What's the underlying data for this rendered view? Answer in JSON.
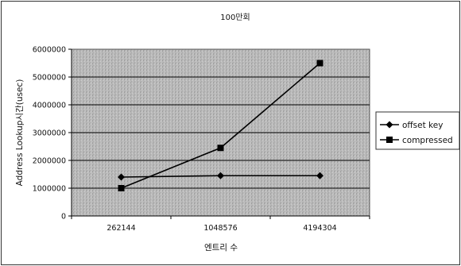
{
  "chart_data": {
    "type": "line",
    "title": "100만회",
    "xlabel": "엔트리 수",
    "ylabel": "Address Lookup시간(usec)",
    "categories": [
      "262144",
      "1048576",
      "4194304"
    ],
    "y_ticks": [
      "0",
      "1000000",
      "2000000",
      "3000000",
      "4000000",
      "5000000",
      "6000000"
    ],
    "ylim": [
      0,
      6000000
    ],
    "grid": true,
    "legend_position": "right",
    "series": [
      {
        "name": "offset key",
        "marker": "diamond",
        "values": [
          1400000,
          1450000,
          1450000
        ]
      },
      {
        "name": "compressed",
        "marker": "square",
        "values": [
          1000000,
          2450000,
          5500000
        ]
      }
    ],
    "colors": {
      "plot_background": "#b7b7b7",
      "series": "#000000",
      "gridline": "#000000"
    }
  }
}
